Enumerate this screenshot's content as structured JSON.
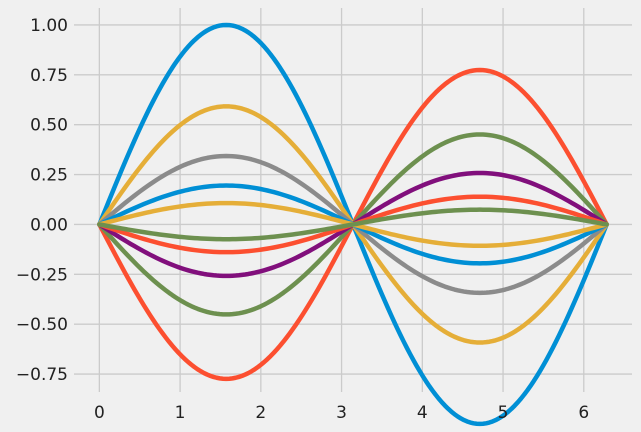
{
  "chart_data": {
    "type": "line",
    "title": "",
    "xlabel": "",
    "ylabel": "",
    "xlim": [
      -0.314,
      6.597
    ],
    "ylim": [
      -0.84,
      1.085
    ],
    "x_ticks": [
      0,
      1,
      2,
      3,
      4,
      5,
      6
    ],
    "x_tick_labels": [
      "0",
      "1",
      "2",
      "3",
      "4",
      "5",
      "6"
    ],
    "y_ticks": [
      -0.75,
      -0.5,
      -0.25,
      0.0,
      0.25,
      0.5,
      0.75,
      1.0
    ],
    "y_tick_labels": [
      "−0.75",
      "−0.50",
      "−0.25",
      "0.00",
      "0.25",
      "0.50",
      "0.75",
      "1.00"
    ],
    "grid": true,
    "x_domain": [
      0,
      6.2832
    ],
    "function": "amplitude * sin(x)",
    "series": [
      {
        "amplitude": 1.0,
        "color": "#008fd5"
      },
      {
        "amplitude": -0.774,
        "color": "#fc4f30"
      },
      {
        "amplitude": 0.592,
        "color": "#e5ae38"
      },
      {
        "amplitude": -0.451,
        "color": "#6d904f"
      },
      {
        "amplitude": 0.343,
        "color": "#8b8b8b"
      },
      {
        "amplitude": -0.258,
        "color": "#810f7c"
      },
      {
        "amplitude": 0.195,
        "color": "#008fd5"
      },
      {
        "amplitude": -0.139,
        "color": "#fc4f30"
      },
      {
        "amplitude": 0.107,
        "color": "#e5ae38"
      },
      {
        "amplitude": -0.074,
        "color": "#6d904f"
      }
    ]
  }
}
